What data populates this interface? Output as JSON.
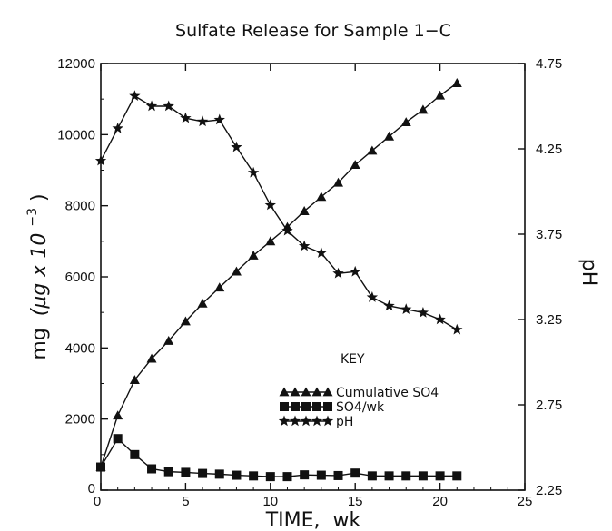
{
  "chart_data": {
    "type": "line",
    "title": "Sulfate Release for Sample 1−C",
    "xlabel": "TIME,  wk",
    "ylabel": "mg",
    "ylabel_unit": "(µg x 10",
    "ylabel_exp": "−3",
    "ylabel_close": ")",
    "y2label": "pH",
    "xlim": [
      0,
      25
    ],
    "ylim": [
      0,
      12000
    ],
    "y2lim": [
      2.25,
      4.75
    ],
    "xticks": [
      "0",
      "5",
      "10",
      "15",
      "20",
      "25"
    ],
    "yticks": [
      "0",
      "2000",
      "4000",
      "6000",
      "8000",
      "10000",
      "12000"
    ],
    "y2ticks": [
      "2.25",
      "2.75",
      "3.25",
      "3.75",
      "4.25",
      "4.75"
    ],
    "legend_title": "KEY",
    "legend_position": "center-right",
    "series": [
      {
        "name": "Cumulative  SO4",
        "axis": "left",
        "marker": "triangle",
        "x": [
          0,
          1,
          2,
          3,
          4,
          5,
          6,
          7,
          8,
          9,
          10,
          11,
          12,
          13,
          14,
          15,
          16,
          17,
          18,
          19,
          20,
          21
        ],
        "y": [
          650,
          2100,
          3100,
          3700,
          4200,
          4750,
          5250,
          5700,
          6150,
          6600,
          7000,
          7400,
          7850,
          8250,
          8650,
          9150,
          9550,
          9950,
          10350,
          10700,
          11100,
          11450
        ]
      },
      {
        "name": "SO4/wk",
        "axis": "left",
        "marker": "square",
        "x": [
          0,
          1,
          2,
          3,
          4,
          5,
          6,
          7,
          8,
          9,
          10,
          11,
          12,
          13,
          14,
          15,
          16,
          17,
          18,
          19,
          20,
          21
        ],
        "y": [
          650,
          1450,
          1000,
          600,
          520,
          500,
          470,
          450,
          420,
          400,
          380,
          380,
          430,
          420,
          410,
          480,
          400,
          400,
          400,
          400,
          400,
          400
        ]
      },
      {
        "name": "pH",
        "axis": "right",
        "marker": "star",
        "x": [
          0,
          1,
          2,
          3,
          4,
          5,
          6,
          7,
          8,
          9,
          10,
          11,
          12,
          13,
          14,
          15,
          16,
          17,
          18,
          19,
          20,
          21
        ],
        "y": [
          4.18,
          4.37,
          4.56,
          4.5,
          4.5,
          4.43,
          4.41,
          4.42,
          4.26,
          4.11,
          3.92,
          3.77,
          3.68,
          3.64,
          3.52,
          3.53,
          3.38,
          3.33,
          3.31,
          3.29,
          3.25,
          3.19
        ]
      }
    ]
  }
}
